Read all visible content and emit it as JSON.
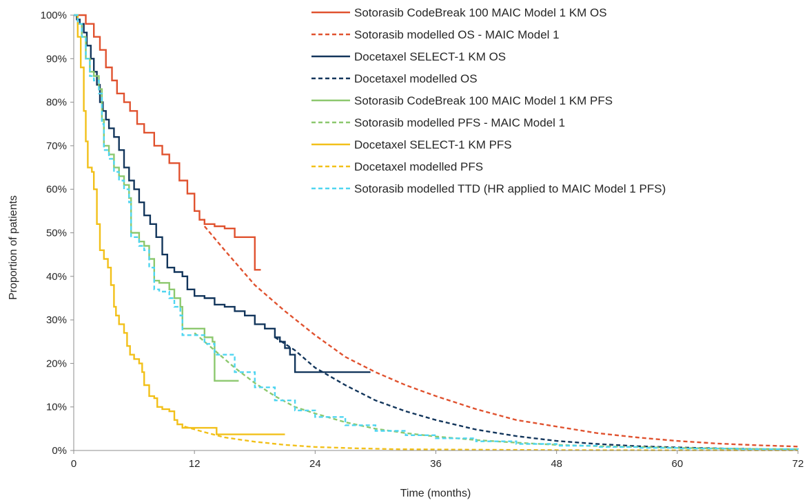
{
  "chart_data": {
    "type": "line",
    "title": "",
    "xlabel": "Time (months)",
    "ylabel": "Proportion of patients",
    "xlim": [
      0,
      72
    ],
    "ylim": [
      0,
      1
    ],
    "x_ticks": [
      0,
      12,
      24,
      36,
      48,
      60,
      72
    ],
    "x_tick_labels": [
      "0",
      "12",
      "24",
      "36",
      "48",
      "60",
      "72"
    ],
    "y_ticks": [
      0,
      0.1,
      0.2,
      0.3,
      0.4,
      0.5,
      0.6,
      0.7,
      0.8,
      0.9,
      1.0
    ],
    "y_tick_labels": [
      "0%",
      "10%",
      "20%",
      "30%",
      "40%",
      "50%",
      "60%",
      "70%",
      "80%",
      "90%",
      "100%"
    ],
    "grid": false,
    "legend_position": "top-right",
    "series": [
      {
        "name": "Sotorasib CodeBreak 100 MAIC Model 1 KM OS",
        "color": "#E0522F",
        "dash": "solid",
        "step": true,
        "points": [
          [
            0,
            1.0
          ],
          [
            0.6,
            1.0
          ],
          [
            1.2,
            0.98
          ],
          [
            2.0,
            0.95
          ],
          [
            2.6,
            0.92
          ],
          [
            3.2,
            0.88
          ],
          [
            3.8,
            0.85
          ],
          [
            4.3,
            0.82
          ],
          [
            5.0,
            0.8
          ],
          [
            5.6,
            0.78
          ],
          [
            6.3,
            0.75
          ],
          [
            7.0,
            0.73
          ],
          [
            8.0,
            0.7
          ],
          [
            8.8,
            0.68
          ],
          [
            9.5,
            0.66
          ],
          [
            10.5,
            0.62
          ],
          [
            11.3,
            0.59
          ],
          [
            12.0,
            0.55
          ],
          [
            12.5,
            0.53
          ],
          [
            13.0,
            0.52
          ],
          [
            14.0,
            0.515
          ],
          [
            15.0,
            0.51
          ],
          [
            16.0,
            0.49
          ],
          [
            18.0,
            0.49
          ],
          [
            18.0,
            0.415
          ],
          [
            18.6,
            0.415
          ]
        ]
      },
      {
        "name": "Sotorasib modelled OS - MAIC Model 1",
        "color": "#E0522F",
        "dash": "dashed",
        "step": false,
        "points": [
          [
            13,
            0.515
          ],
          [
            15,
            0.46
          ],
          [
            18,
            0.38
          ],
          [
            21,
            0.32
          ],
          [
            24,
            0.265
          ],
          [
            27,
            0.215
          ],
          [
            30,
            0.18
          ],
          [
            33,
            0.15
          ],
          [
            36,
            0.125
          ],
          [
            40,
            0.095
          ],
          [
            44,
            0.07
          ],
          [
            48,
            0.055
          ],
          [
            52,
            0.04
          ],
          [
            56,
            0.03
          ],
          [
            60,
            0.022
          ],
          [
            64,
            0.016
          ],
          [
            68,
            0.012
          ],
          [
            72,
            0.009
          ]
        ]
      },
      {
        "name": "Docetaxel SELECT-1 KM OS",
        "color": "#12355B",
        "dash": "solid",
        "step": true,
        "points": [
          [
            0,
            1.0
          ],
          [
            0.3,
            0.99
          ],
          [
            0.6,
            0.98
          ],
          [
            1.0,
            0.96
          ],
          [
            1.3,
            0.93
          ],
          [
            1.7,
            0.9
          ],
          [
            2.0,
            0.87
          ],
          [
            2.3,
            0.84
          ],
          [
            2.6,
            0.8
          ],
          [
            2.9,
            0.78
          ],
          [
            3.2,
            0.76
          ],
          [
            3.5,
            0.74
          ],
          [
            4.0,
            0.72
          ],
          [
            4.5,
            0.69
          ],
          [
            5.0,
            0.65
          ],
          [
            5.5,
            0.62
          ],
          [
            6.0,
            0.6
          ],
          [
            6.5,
            0.57
          ],
          [
            7.0,
            0.54
          ],
          [
            7.6,
            0.52
          ],
          [
            8.2,
            0.49
          ],
          [
            8.8,
            0.45
          ],
          [
            9.3,
            0.42
          ],
          [
            10.0,
            0.41
          ],
          [
            10.8,
            0.4
          ],
          [
            11.3,
            0.37
          ],
          [
            12.0,
            0.355
          ],
          [
            13.0,
            0.35
          ],
          [
            14.0,
            0.335
          ],
          [
            15.0,
            0.33
          ],
          [
            16.0,
            0.32
          ],
          [
            17.0,
            0.31
          ],
          [
            18.0,
            0.29
          ],
          [
            19.0,
            0.28
          ],
          [
            20.0,
            0.26
          ],
          [
            20.5,
            0.25
          ],
          [
            21.0,
            0.235
          ],
          [
            21.5,
            0.22
          ],
          [
            22.0,
            0.18
          ],
          [
            29.5,
            0.18
          ]
        ]
      },
      {
        "name": "Docetaxel modelled OS",
        "color": "#12355B",
        "dash": "dashed",
        "step": false,
        "points": [
          [
            20,
            0.26
          ],
          [
            22,
            0.23
          ],
          [
            24,
            0.19
          ],
          [
            27,
            0.15
          ],
          [
            30,
            0.115
          ],
          [
            33,
            0.09
          ],
          [
            36,
            0.07
          ],
          [
            40,
            0.048
          ],
          [
            44,
            0.033
          ],
          [
            48,
            0.022
          ],
          [
            52,
            0.015
          ],
          [
            56,
            0.01
          ],
          [
            60,
            0.007
          ],
          [
            66,
            0.004
          ],
          [
            72,
            0.002
          ]
        ]
      },
      {
        "name": "Sotorasib CodeBreak 100 MAIC Model 1 KM PFS",
        "color": "#8CC86E",
        "dash": "solid",
        "step": true,
        "points": [
          [
            0,
            1.0
          ],
          [
            0.4,
            0.98
          ],
          [
            0.8,
            0.95
          ],
          [
            1.2,
            0.9
          ],
          [
            1.6,
            0.87
          ],
          [
            2.0,
            0.86
          ],
          [
            2.5,
            0.83
          ],
          [
            2.8,
            0.76
          ],
          [
            3.0,
            0.7
          ],
          [
            3.5,
            0.68
          ],
          [
            4.0,
            0.65
          ],
          [
            4.5,
            0.63
          ],
          [
            5.0,
            0.61
          ],
          [
            5.5,
            0.58
          ],
          [
            5.7,
            0.5
          ],
          [
            6.5,
            0.48
          ],
          [
            7.0,
            0.47
          ],
          [
            7.5,
            0.44
          ],
          [
            8.0,
            0.39
          ],
          [
            8.5,
            0.385
          ],
          [
            9.5,
            0.37
          ],
          [
            10.0,
            0.35
          ],
          [
            10.6,
            0.33
          ],
          [
            10.8,
            0.28
          ],
          [
            12.0,
            0.28
          ],
          [
            13.0,
            0.26
          ],
          [
            13.8,
            0.25
          ],
          [
            14.0,
            0.16
          ],
          [
            16.4,
            0.16
          ]
        ]
      },
      {
        "name": "Sotorasib modelled PFS - MAIC Model 1",
        "color": "#8CC86E",
        "dash": "dashed",
        "step": false,
        "points": [
          [
            12,
            0.27
          ],
          [
            14,
            0.23
          ],
          [
            16,
            0.19
          ],
          [
            18,
            0.155
          ],
          [
            20,
            0.125
          ],
          [
            22,
            0.1
          ],
          [
            24,
            0.085
          ],
          [
            27,
            0.065
          ],
          [
            30,
            0.05
          ],
          [
            33,
            0.04
          ],
          [
            36,
            0.032
          ],
          [
            40,
            0.024
          ],
          [
            44,
            0.018
          ],
          [
            48,
            0.013
          ],
          [
            52,
            0.01
          ],
          [
            56,
            0.008
          ],
          [
            60,
            0.006
          ],
          [
            66,
            0.004
          ],
          [
            72,
            0.003
          ]
        ]
      },
      {
        "name": "Docetaxel SELECT-1 KM PFS",
        "color": "#F2C019",
        "dash": "solid",
        "step": true,
        "points": [
          [
            0,
            1.0
          ],
          [
            0.4,
            0.95
          ],
          [
            0.7,
            0.88
          ],
          [
            1.0,
            0.78
          ],
          [
            1.2,
            0.71
          ],
          [
            1.4,
            0.65
          ],
          [
            1.8,
            0.64
          ],
          [
            2.0,
            0.6
          ],
          [
            2.3,
            0.52
          ],
          [
            2.6,
            0.46
          ],
          [
            3.0,
            0.44
          ],
          [
            3.4,
            0.42
          ],
          [
            3.7,
            0.38
          ],
          [
            4.0,
            0.33
          ],
          [
            4.2,
            0.31
          ],
          [
            4.5,
            0.29
          ],
          [
            5.0,
            0.27
          ],
          [
            5.3,
            0.24
          ],
          [
            5.6,
            0.22
          ],
          [
            6.0,
            0.21
          ],
          [
            6.5,
            0.2
          ],
          [
            6.8,
            0.18
          ],
          [
            7.0,
            0.15
          ],
          [
            7.5,
            0.125
          ],
          [
            8.0,
            0.12
          ],
          [
            8.3,
            0.1
          ],
          [
            8.8,
            0.095
          ],
          [
            9.5,
            0.09
          ],
          [
            10.0,
            0.07
          ],
          [
            10.3,
            0.06
          ],
          [
            10.8,
            0.052
          ],
          [
            14.0,
            0.052
          ],
          [
            14.2,
            0.037
          ],
          [
            21.0,
            0.037
          ]
        ]
      },
      {
        "name": "Docetaxel modelled PFS",
        "color": "#F2C019",
        "dash": "dashed",
        "step": false,
        "points": [
          [
            11,
            0.055
          ],
          [
            13,
            0.042
          ],
          [
            15,
            0.03
          ],
          [
            18,
            0.02
          ],
          [
            21,
            0.013
          ],
          [
            24,
            0.008
          ],
          [
            28,
            0.005
          ],
          [
            32,
            0.003
          ],
          [
            38,
            0.002
          ],
          [
            48,
            0.001
          ],
          [
            60,
            0.0005
          ],
          [
            72,
            0.0003
          ]
        ]
      },
      {
        "name": "Sotorasib modelled TTD (HR applied to MAIC Model 1 PFS)",
        "color": "#4FD5F0",
        "dash": "dashed",
        "step": true,
        "points": [
          [
            0,
            1.0
          ],
          [
            0.4,
            0.98
          ],
          [
            0.8,
            0.95
          ],
          [
            1.2,
            0.9
          ],
          [
            1.6,
            0.86
          ],
          [
            2.0,
            0.85
          ],
          [
            2.5,
            0.82
          ],
          [
            2.8,
            0.75
          ],
          [
            3.0,
            0.69
          ],
          [
            3.5,
            0.67
          ],
          [
            4.0,
            0.64
          ],
          [
            4.5,
            0.62
          ],
          [
            5.0,
            0.6
          ],
          [
            5.5,
            0.57
          ],
          [
            5.7,
            0.49
          ],
          [
            6.5,
            0.47
          ],
          [
            7.0,
            0.46
          ],
          [
            7.5,
            0.42
          ],
          [
            8.0,
            0.37
          ],
          [
            8.5,
            0.365
          ],
          [
            9.5,
            0.35
          ],
          [
            10.0,
            0.33
          ],
          [
            10.6,
            0.31
          ],
          [
            10.8,
            0.265
          ],
          [
            12.0,
            0.265
          ],
          [
            13.0,
            0.245
          ],
          [
            14,
            0.22
          ],
          [
            16,
            0.18
          ],
          [
            18,
            0.145
          ],
          [
            20,
            0.115
          ],
          [
            22,
            0.092
          ],
          [
            24,
            0.077
          ],
          [
            27,
            0.058
          ],
          [
            30,
            0.045
          ],
          [
            33,
            0.035
          ],
          [
            36,
            0.028
          ],
          [
            40,
            0.021
          ],
          [
            44,
            0.015
          ],
          [
            48,
            0.011
          ],
          [
            52,
            0.008
          ],
          [
            56,
            0.006
          ],
          [
            60,
            0.0045
          ],
          [
            66,
            0.003
          ],
          [
            72,
            0.002
          ]
        ]
      }
    ]
  }
}
